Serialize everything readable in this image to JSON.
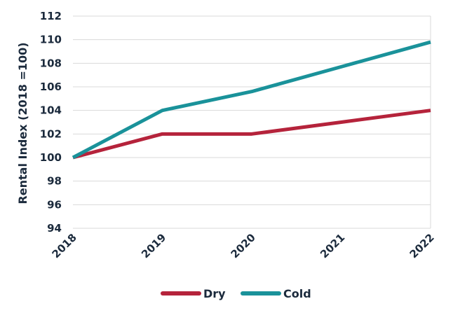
{
  "chart_data": {
    "type": "line",
    "title": "",
    "xlabel": "",
    "ylabel": "Rental Index (2018 =100)",
    "categories": [
      "2018",
      "2019",
      "2020",
      "2021",
      "2022"
    ],
    "ylim": [
      94,
      112
    ],
    "yticks": [
      "94",
      "96",
      "98",
      "100",
      "102",
      "104",
      "106",
      "108",
      "110",
      "112"
    ],
    "grid": true,
    "legend_position": "bottom",
    "series": [
      {
        "name": "Dry",
        "color": "#b5233b",
        "values": [
          100,
          102,
          102,
          103,
          104
        ]
      },
      {
        "name": "Cold",
        "color": "#1a929a",
        "values": [
          100,
          104,
          105.6,
          107.7,
          109.8
        ]
      }
    ]
  }
}
